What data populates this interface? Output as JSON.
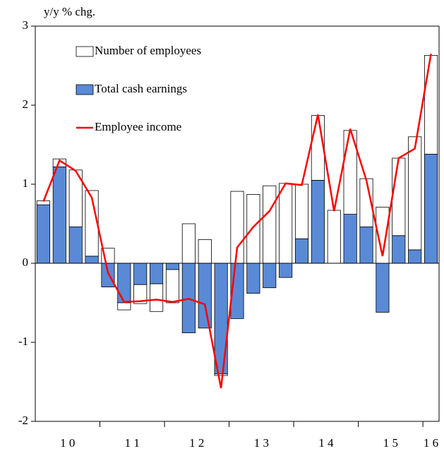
{
  "chart_data": {
    "type": "bar",
    "stacked": true,
    "y_axis_label": "y/y % chg.",
    "categories": [
      "1 0",
      null,
      null,
      null,
      "1 1",
      null,
      null,
      null,
      "1 2",
      null,
      null,
      null,
      "1 3",
      null,
      null,
      null,
      "1 4",
      null,
      null,
      null,
      "1 5",
      null,
      null,
      null,
      "1 6"
    ],
    "series": [
      {
        "name": "Number of employees",
        "color": "#ffffff",
        "kind": "bar",
        "values": [
          0.05,
          0.1,
          0.72,
          0.83,
          0.19,
          -0.09,
          -0.24,
          -0.35,
          -0.42,
          0.5,
          0.3,
          -0.02,
          0.91,
          0.87,
          0.98,
          1.01,
          0.69,
          0.82,
          0.67,
          1.06,
          0.61,
          0.71,
          0.98,
          1.43,
          1.25
        ]
      },
      {
        "name": "Total cash earnings",
        "color": "#5a8ad6",
        "kind": "bar",
        "values": [
          0.74,
          1.22,
          0.46,
          0.09,
          -0.3,
          -0.5,
          -0.27,
          -0.26,
          -0.08,
          -0.88,
          -0.82,
          -1.4,
          -0.7,
          -0.38,
          -0.31,
          -0.18,
          0.31,
          1.05,
          0.0,
          0.62,
          0.46,
          -0.62,
          0.35,
          0.17,
          1.38
        ]
      },
      {
        "name": "Employee income",
        "color": "#ff0000",
        "kind": "line",
        "values": [
          0.78,
          1.3,
          1.17,
          0.83,
          -0.12,
          -0.49,
          -0.48,
          -0.46,
          -0.49,
          -0.45,
          -0.52,
          -1.58,
          0.2,
          0.46,
          0.66,
          1.01,
          0.99,
          1.88,
          0.66,
          1.7,
          1.05,
          0.09,
          1.33,
          1.45,
          2.65
        ]
      }
    ],
    "ylim": [
      -2,
      3
    ],
    "yticks": [
      -2,
      -1,
      0,
      1,
      2,
      3
    ],
    "legend": "upper left"
  }
}
